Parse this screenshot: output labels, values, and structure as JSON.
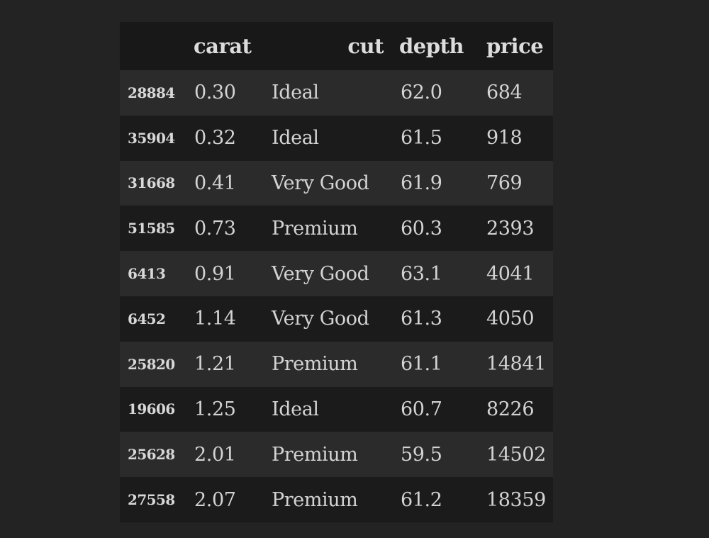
{
  "table": {
    "columns": [
      "carat",
      "cut",
      "depth",
      "price"
    ],
    "rows": [
      {
        "index": "28884",
        "carat": "0.30",
        "cut": "Ideal",
        "depth": "62.0",
        "price": "684"
      },
      {
        "index": "35904",
        "carat": "0.32",
        "cut": "Ideal",
        "depth": "61.5",
        "price": "918"
      },
      {
        "index": "31668",
        "carat": "0.41",
        "cut": "Very Good",
        "depth": "61.9",
        "price": "769"
      },
      {
        "index": "51585",
        "carat": "0.73",
        "cut": "Premium",
        "depth": "60.3",
        "price": "2393"
      },
      {
        "index": "6413",
        "carat": "0.91",
        "cut": "Very Good",
        "depth": "63.1",
        "price": "4041"
      },
      {
        "index": "6452",
        "carat": "1.14",
        "cut": "Very Good",
        "depth": "61.3",
        "price": "4050"
      },
      {
        "index": "25820",
        "carat": "1.21",
        "cut": "Premium",
        "depth": "61.1",
        "price": "14841"
      },
      {
        "index": "19606",
        "carat": "1.25",
        "cut": "Ideal",
        "depth": "60.7",
        "price": "8226"
      },
      {
        "index": "25628",
        "carat": "2.01",
        "cut": "Premium",
        "depth": "59.5",
        "price": "14502"
      },
      {
        "index": "27558",
        "carat": "2.07",
        "cut": "Premium",
        "depth": "61.2",
        "price": "18359"
      }
    ]
  },
  "colors": {
    "page_background": "#232323",
    "header_background": "#181818",
    "row_light": "#2b2b2b",
    "row_dark": "#1b1b1b",
    "text": "#d6d6d6"
  }
}
